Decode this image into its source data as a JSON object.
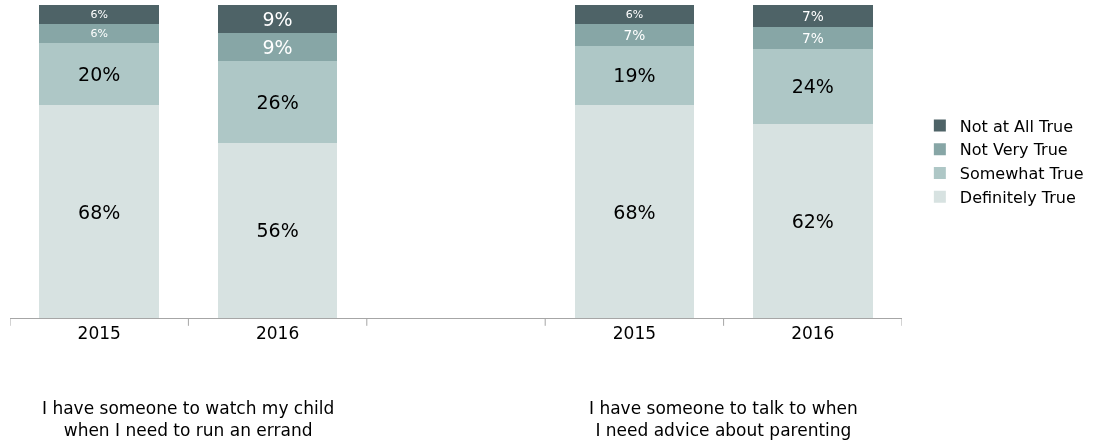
{
  "chart_data": {
    "type": "bar",
    "stacked": true,
    "legend": "right",
    "categories": [
      "2015",
      "2016",
      null,
      "2015",
      "2016"
    ],
    "series": [
      {
        "name": "Definitely True",
        "color": "#d7e2e1",
        "values": [
          68,
          56,
          null,
          68,
          62
        ],
        "value_labels": [
          "68%",
          "56%",
          null,
          "68%",
          "62%"
        ]
      },
      {
        "name": "Somewhat True",
        "color": "#aec7c6",
        "values": [
          20,
          26,
          null,
          19,
          24
        ],
        "value_labels": [
          "20%",
          "26%",
          null,
          "19%",
          "24%"
        ]
      },
      {
        "name": "Not Very True",
        "color": "#87a6a6",
        "values": [
          6,
          9,
          null,
          7,
          7
        ],
        "value_labels": [
          "6%",
          "9%",
          null,
          "7%",
          "7%"
        ]
      },
      {
        "name": "Not at All True",
        "color": "#4e6367",
        "values": [
          6,
          9,
          null,
          6,
          7
        ],
        "value_labels": [
          "6%",
          "9%",
          null,
          "6%",
          "7%"
        ]
      }
    ],
    "annotations": [
      "I have someone to watch my child\nwhen I need to run an errand",
      "I have someone to talk to when\nI need advice about parenting"
    ]
  }
}
